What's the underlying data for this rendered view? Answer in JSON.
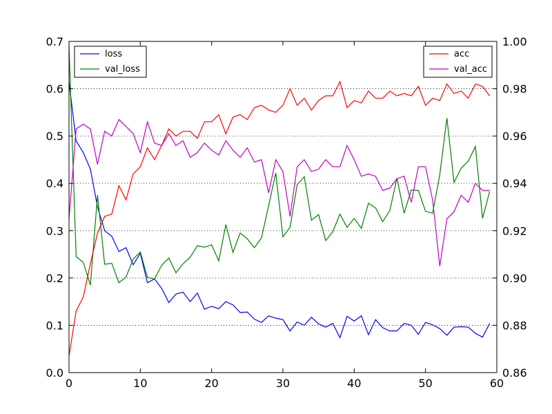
{
  "chart_data": {
    "type": "line",
    "x": [
      0,
      1,
      2,
      3,
      4,
      5,
      6,
      7,
      8,
      9,
      10,
      11,
      12,
      13,
      14,
      15,
      16,
      17,
      18,
      19,
      20,
      21,
      22,
      23,
      24,
      25,
      26,
      27,
      28,
      29,
      30,
      31,
      32,
      33,
      34,
      35,
      36,
      37,
      38,
      39,
      40,
      41,
      42,
      43,
      44,
      45,
      46,
      47,
      48,
      49,
      50,
      51,
      52,
      53,
      54,
      55,
      56,
      57,
      58,
      59
    ],
    "xlim": [
      0,
      60
    ],
    "xticks": [
      "0",
      "10",
      "20",
      "30",
      "40",
      "50",
      "60"
    ],
    "ylim_left": [
      0.0,
      0.7
    ],
    "yticks_left": [
      "0.0",
      "0.1",
      "0.2",
      "0.3",
      "0.4",
      "0.5",
      "0.6",
      "0.7"
    ],
    "ylim_right": [
      0.86,
      1.0
    ],
    "yticks_right": [
      "0.86",
      "0.88",
      "0.90",
      "0.92",
      "0.94",
      "0.96",
      "0.98",
      "1.00"
    ],
    "grid": "horizontal dotted at right-axis ticks",
    "series_left": [
      {
        "name": "loss",
        "color": "#0000ff",
        "values": [
          0.615,
          0.49,
          0.465,
          0.43,
          0.35,
          0.3,
          0.288,
          0.256,
          0.264,
          0.228,
          0.252,
          0.19,
          0.198,
          0.178,
          0.148,
          0.166,
          0.17,
          0.15,
          0.168,
          0.134,
          0.14,
          0.135,
          0.15,
          0.143,
          0.127,
          0.128,
          0.113,
          0.106,
          0.12,
          0.115,
          0.112,
          0.088,
          0.107,
          0.1,
          0.117,
          0.103,
          0.096,
          0.104,
          0.074,
          0.119,
          0.109,
          0.12,
          0.08,
          0.112,
          0.095,
          0.088,
          0.088,
          0.104,
          0.1,
          0.081,
          0.106,
          0.101,
          0.093,
          0.079,
          0.096,
          0.097,
          0.096,
          0.083,
          0.075,
          0.104
        ]
      },
      {
        "name": "val_loss",
        "color": "#008000",
        "values": [
          0.69,
          0.245,
          0.233,
          0.185,
          0.375,
          0.229,
          0.231,
          0.19,
          0.202,
          0.24,
          0.255,
          0.201,
          0.198,
          0.227,
          0.242,
          0.211,
          0.23,
          0.244,
          0.268,
          0.265,
          0.27,
          0.236,
          0.313,
          0.254,
          0.295,
          0.283,
          0.264,
          0.285,
          0.353,
          0.422,
          0.287,
          0.307,
          0.397,
          0.414,
          0.322,
          0.334,
          0.279,
          0.298,
          0.335,
          0.307,
          0.326,
          0.305,
          0.358,
          0.348,
          0.319,
          0.343,
          0.411,
          0.337,
          0.386,
          0.385,
          0.341,
          0.337,
          0.418,
          0.538,
          0.402,
          0.432,
          0.447,
          0.478,
          0.326,
          0.383
        ]
      }
    ],
    "series_right": [
      {
        "name": "acc",
        "color": "#ff0000",
        "values": [
          0.867,
          0.886,
          0.892,
          0.906,
          0.919,
          0.926,
          0.927,
          0.939,
          0.933,
          0.944,
          0.947,
          0.955,
          0.95,
          0.956,
          0.963,
          0.96,
          0.962,
          0.962,
          0.959,
          0.966,
          0.966,
          0.969,
          0.961,
          0.968,
          0.969,
          0.967,
          0.972,
          0.973,
          0.971,
          0.97,
          0.973,
          0.98,
          0.973,
          0.976,
          0.971,
          0.975,
          0.977,
          0.977,
          0.983,
          0.972,
          0.975,
          0.974,
          0.979,
          0.976,
          0.976,
          0.979,
          0.977,
          0.978,
          0.977,
          0.981,
          0.973,
          0.976,
          0.975,
          0.982,
          0.978,
          0.979,
          0.976,
          0.982,
          0.981,
          0.977
        ]
      },
      {
        "name": "val_acc",
        "color": "#bf00bf",
        "values": [
          0.925,
          0.963,
          0.965,
          0.963,
          0.948,
          0.962,
          0.96,
          0.967,
          0.964,
          0.961,
          0.953,
          0.966,
          0.957,
          0.956,
          0.961,
          0.956,
          0.958,
          0.951,
          0.953,
          0.957,
          0.954,
          0.952,
          0.958,
          0.954,
          0.951,
          0.955,
          0.949,
          0.95,
          0.936,
          0.95,
          0.945,
          0.926,
          0.947,
          0.95,
          0.945,
          0.946,
          0.95,
          0.947,
          0.947,
          0.956,
          0.95,
          0.943,
          0.944,
          0.943,
          0.937,
          0.938,
          0.942,
          0.943,
          0.932,
          0.947,
          0.947,
          0.933,
          0.905,
          0.925,
          0.928,
          0.935,
          0.932,
          0.94,
          0.937,
          0.937
        ]
      }
    ],
    "legends": [
      {
        "position": "upper-left",
        "entries": [
          "loss",
          "val_loss"
        ]
      },
      {
        "position": "upper-right",
        "entries": [
          "acc",
          "val_acc"
        ]
      }
    ]
  }
}
